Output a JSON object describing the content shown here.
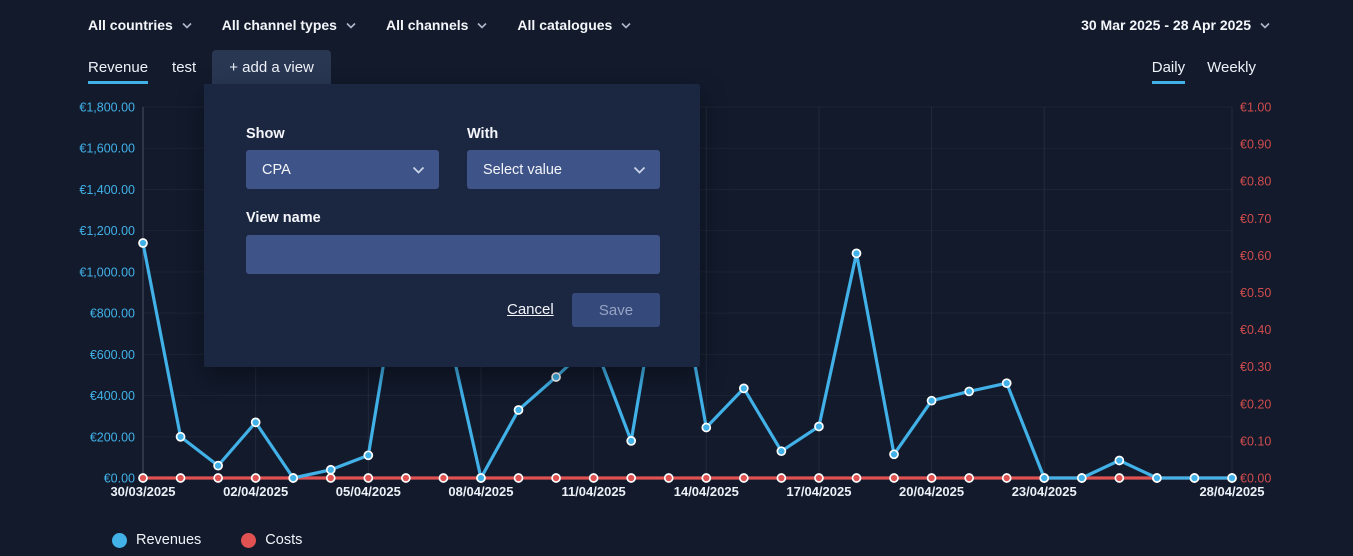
{
  "header": {
    "filters": [
      {
        "label": "All countries"
      },
      {
        "label": "All channel types"
      },
      {
        "label": "All channels"
      },
      {
        "label": "All catalogues"
      }
    ],
    "date_range": "30 Mar 2025 - 28 Apr 2025"
  },
  "tabs": {
    "views": [
      {
        "label": "Revenue",
        "active": true
      },
      {
        "label": "test",
        "active": false
      },
      {
        "label": "+ add a view",
        "active": false
      }
    ],
    "granularity": [
      {
        "label": "Daily",
        "active": true
      },
      {
        "label": "Weekly",
        "active": false
      }
    ]
  },
  "add_view_popup": {
    "show_label": "Show",
    "show_value": "CPA",
    "with_label": "With",
    "with_value": "Select value",
    "view_name_label": "View name",
    "view_name_value": "",
    "cancel_label": "Cancel",
    "save_label": "Save"
  },
  "legend": [
    {
      "label": "Revenues",
      "color": "#41b1e8"
    },
    {
      "label": "Costs",
      "color": "#e05252"
    }
  ],
  "colors": {
    "background": "#121a2c",
    "popup_background": "#1b2640",
    "control_fill": "#3e5387",
    "accent_blue": "#41b1e8",
    "accent_red": "#e05252"
  },
  "chart_data": {
    "type": "line",
    "x": [
      "30/03/2025",
      "31/03/2025",
      "01/04/2025",
      "02/04/2025",
      "03/04/2025",
      "04/04/2025",
      "05/04/2025",
      "06/04/2025",
      "07/04/2025",
      "08/04/2025",
      "09/04/2025",
      "10/04/2025",
      "11/04/2025",
      "12/04/2025",
      "13/04/2025",
      "14/04/2025",
      "15/04/2025",
      "16/04/2025",
      "17/04/2025",
      "18/04/2025",
      "19/04/2025",
      "20/04/2025",
      "21/04/2025",
      "22/04/2025",
      "23/04/2025",
      "24/04/2025",
      "25/04/2025",
      "26/04/2025",
      "27/04/2025",
      "28/04/2025"
    ],
    "x_tick_indices": [
      0,
      3,
      6,
      9,
      12,
      15,
      18,
      21,
      24,
      29
    ],
    "x_tick_labels": [
      "30/03/2025",
      "02/04/2025",
      "05/04/2025",
      "08/04/2025",
      "11/04/2025",
      "14/04/2025",
      "17/04/2025",
      "20/04/2025",
      "23/04/2025",
      "28/04/2025"
    ],
    "series": [
      {
        "name": "Costs",
        "axis": "right",
        "color": "#e05252",
        "values": [
          0,
          0,
          0,
          0,
          0,
          0,
          0,
          0,
          0,
          0,
          0,
          0,
          0,
          0,
          0,
          0,
          0,
          0,
          0,
          0,
          0,
          0,
          0,
          0,
          0,
          0,
          0,
          0,
          0,
          0
        ]
      },
      {
        "name": "Revenues",
        "axis": "left",
        "color": "#41b1e8",
        "values": [
          1140,
          200,
          60,
          270,
          0,
          40,
          110,
          1200,
          810,
          0,
          330,
          490,
          660,
          180,
          1250,
          245,
          435,
          130,
          250,
          1090,
          115,
          375,
          420,
          460,
          0,
          0,
          85,
          0,
          0,
          0
        ]
      }
    ],
    "left_axis": {
      "title": "Revenues (EUR)",
      "color": "#41b1e8",
      "range": [
        0,
        1800
      ],
      "tick_values": [
        0,
        200,
        400,
        600,
        800,
        1000,
        1200,
        1400,
        1600,
        1800
      ],
      "tick_labels": [
        "€0.00",
        "€200.00",
        "€400.00",
        "€600.00",
        "€800.00",
        "€1,000.00",
        "€1,200.00",
        "€1,400.00",
        "€1,600.00",
        "€1,800.00"
      ]
    },
    "right_axis": {
      "title": "Costs (EUR)",
      "color": "#d04c4c",
      "range": [
        0,
        1
      ],
      "tick_values": [
        0,
        0.1,
        0.2,
        0.3,
        0.4,
        0.5,
        0.6,
        0.7,
        0.8,
        0.9,
        1.0
      ],
      "tick_labels": [
        "€0.00",
        "€0.10",
        "€0.20",
        "€0.30",
        "€0.40",
        "€0.50",
        "€0.60",
        "€0.70",
        "€0.80",
        "€0.90",
        "€1.00"
      ]
    },
    "grid": true,
    "legend_position": "bottom"
  }
}
